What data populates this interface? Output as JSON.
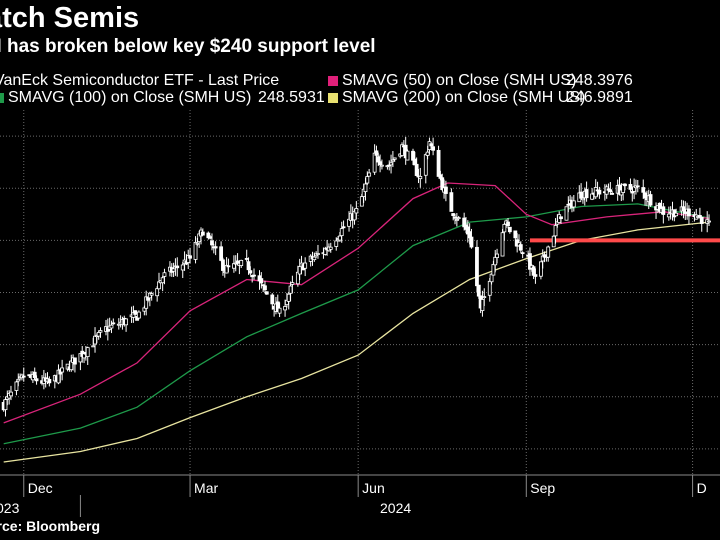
{
  "title": "atch Semis",
  "subtitle": "H has broken below key $240 support level",
  "legend": [
    {
      "label": "VanEck Semiconductor ETF - Last Price",
      "value": "",
      "color": "#ffffff"
    },
    {
      "label": "SMAVG (50)  on Close (SMH US)",
      "value": "248.3976",
      "color": "#e0207a"
    },
    {
      "label": "SMAVG (100)  on Close (SMH US)",
      "value": "248.5931",
      "color": "#1f9a4a"
    },
    {
      "label": "SMAVG (200)  on Close (SMH US)",
      "value": "246.9891",
      "color": "#e8e070"
    }
  ],
  "source": "urce: Bloomberg",
  "support_line_color": "#ff4a4a",
  "chart_data": {
    "type": "line",
    "title": "atch Semis",
    "subtitle": "H has broken below key $240 support level",
    "x_month_labels": [
      "Dec",
      "Mar",
      "Jun",
      "Sep",
      "D"
    ],
    "x_year_labels": [
      "023",
      "2024"
    ],
    "ylim": [
      150,
      290
    ],
    "grid": true,
    "support_level": 240,
    "series": [
      {
        "name": "VanEck Semiconductor ETF - Last Price",
        "x": [
          "2023-11-20",
          "2023-12-01",
          "2023-12-15",
          "2024-01-01",
          "2024-01-15",
          "2024-02-01",
          "2024-02-15",
          "2024-03-01",
          "2024-03-08",
          "2024-03-20",
          "2024-04-01",
          "2024-04-19",
          "2024-05-01",
          "2024-05-15",
          "2024-06-01",
          "2024-06-10",
          "2024-06-18",
          "2024-06-25",
          "2024-07-05",
          "2024-07-10",
          "2024-07-20",
          "2024-08-01",
          "2024-08-07",
          "2024-08-20",
          "2024-09-01",
          "2024-09-06",
          "2024-09-20",
          "2024-10-01",
          "2024-10-15",
          "2024-11-01",
          "2024-11-15",
          "2024-12-01",
          "2024-12-10"
        ],
        "y": [
          177,
          188,
          185,
          196,
          206,
          211,
          226,
          233,
          244,
          229,
          231,
          212,
          230,
          237,
          252,
          272,
          269,
          276,
          264,
          278,
          254,
          242,
          213,
          247,
          234,
          225,
          250,
          258,
          259,
          260,
          251,
          251,
          246
        ]
      },
      {
        "name": "SMAVG (50)  on Close (SMH US)",
        "x": [
          "2023-11-20",
          "2024-01-01",
          "2024-02-01",
          "2024-03-01",
          "2024-04-01",
          "2024-05-01",
          "2024-06-01",
          "2024-07-01",
          "2024-07-20",
          "2024-08-15",
          "2024-09-01",
          "2024-09-15",
          "2024-10-15",
          "2024-11-15",
          "2024-12-10"
        ],
        "y": [
          170,
          181,
          193,
          213,
          225,
          223,
          237,
          256,
          262,
          261,
          250,
          246,
          249,
          251,
          248.3976
        ]
      },
      {
        "name": "SMAVG (100)  on Close (SMH US)",
        "x": [
          "2023-11-20",
          "2024-01-01",
          "2024-02-01",
          "2024-03-01",
          "2024-04-01",
          "2024-05-01",
          "2024-06-01",
          "2024-07-01",
          "2024-08-01",
          "2024-09-01",
          "2024-10-01",
          "2024-11-01",
          "2024-12-10"
        ],
        "y": [
          162,
          168,
          176,
          190,
          203,
          212,
          221,
          238,
          247,
          249,
          253,
          254,
          248.5931
        ]
      },
      {
        "name": "SMAVG (200)  on Close (SMH US)",
        "x": [
          "2023-11-20",
          "2024-01-01",
          "2024-02-01",
          "2024-03-01",
          "2024-04-01",
          "2024-05-01",
          "2024-06-01",
          "2024-07-01",
          "2024-08-01",
          "2024-09-01",
          "2024-10-01",
          "2024-11-01",
          "2024-12-10"
        ],
        "y": [
          155,
          159,
          164,
          172,
          180,
          187,
          196,
          212,
          225,
          233,
          240,
          244,
          246.9891
        ]
      }
    ]
  }
}
